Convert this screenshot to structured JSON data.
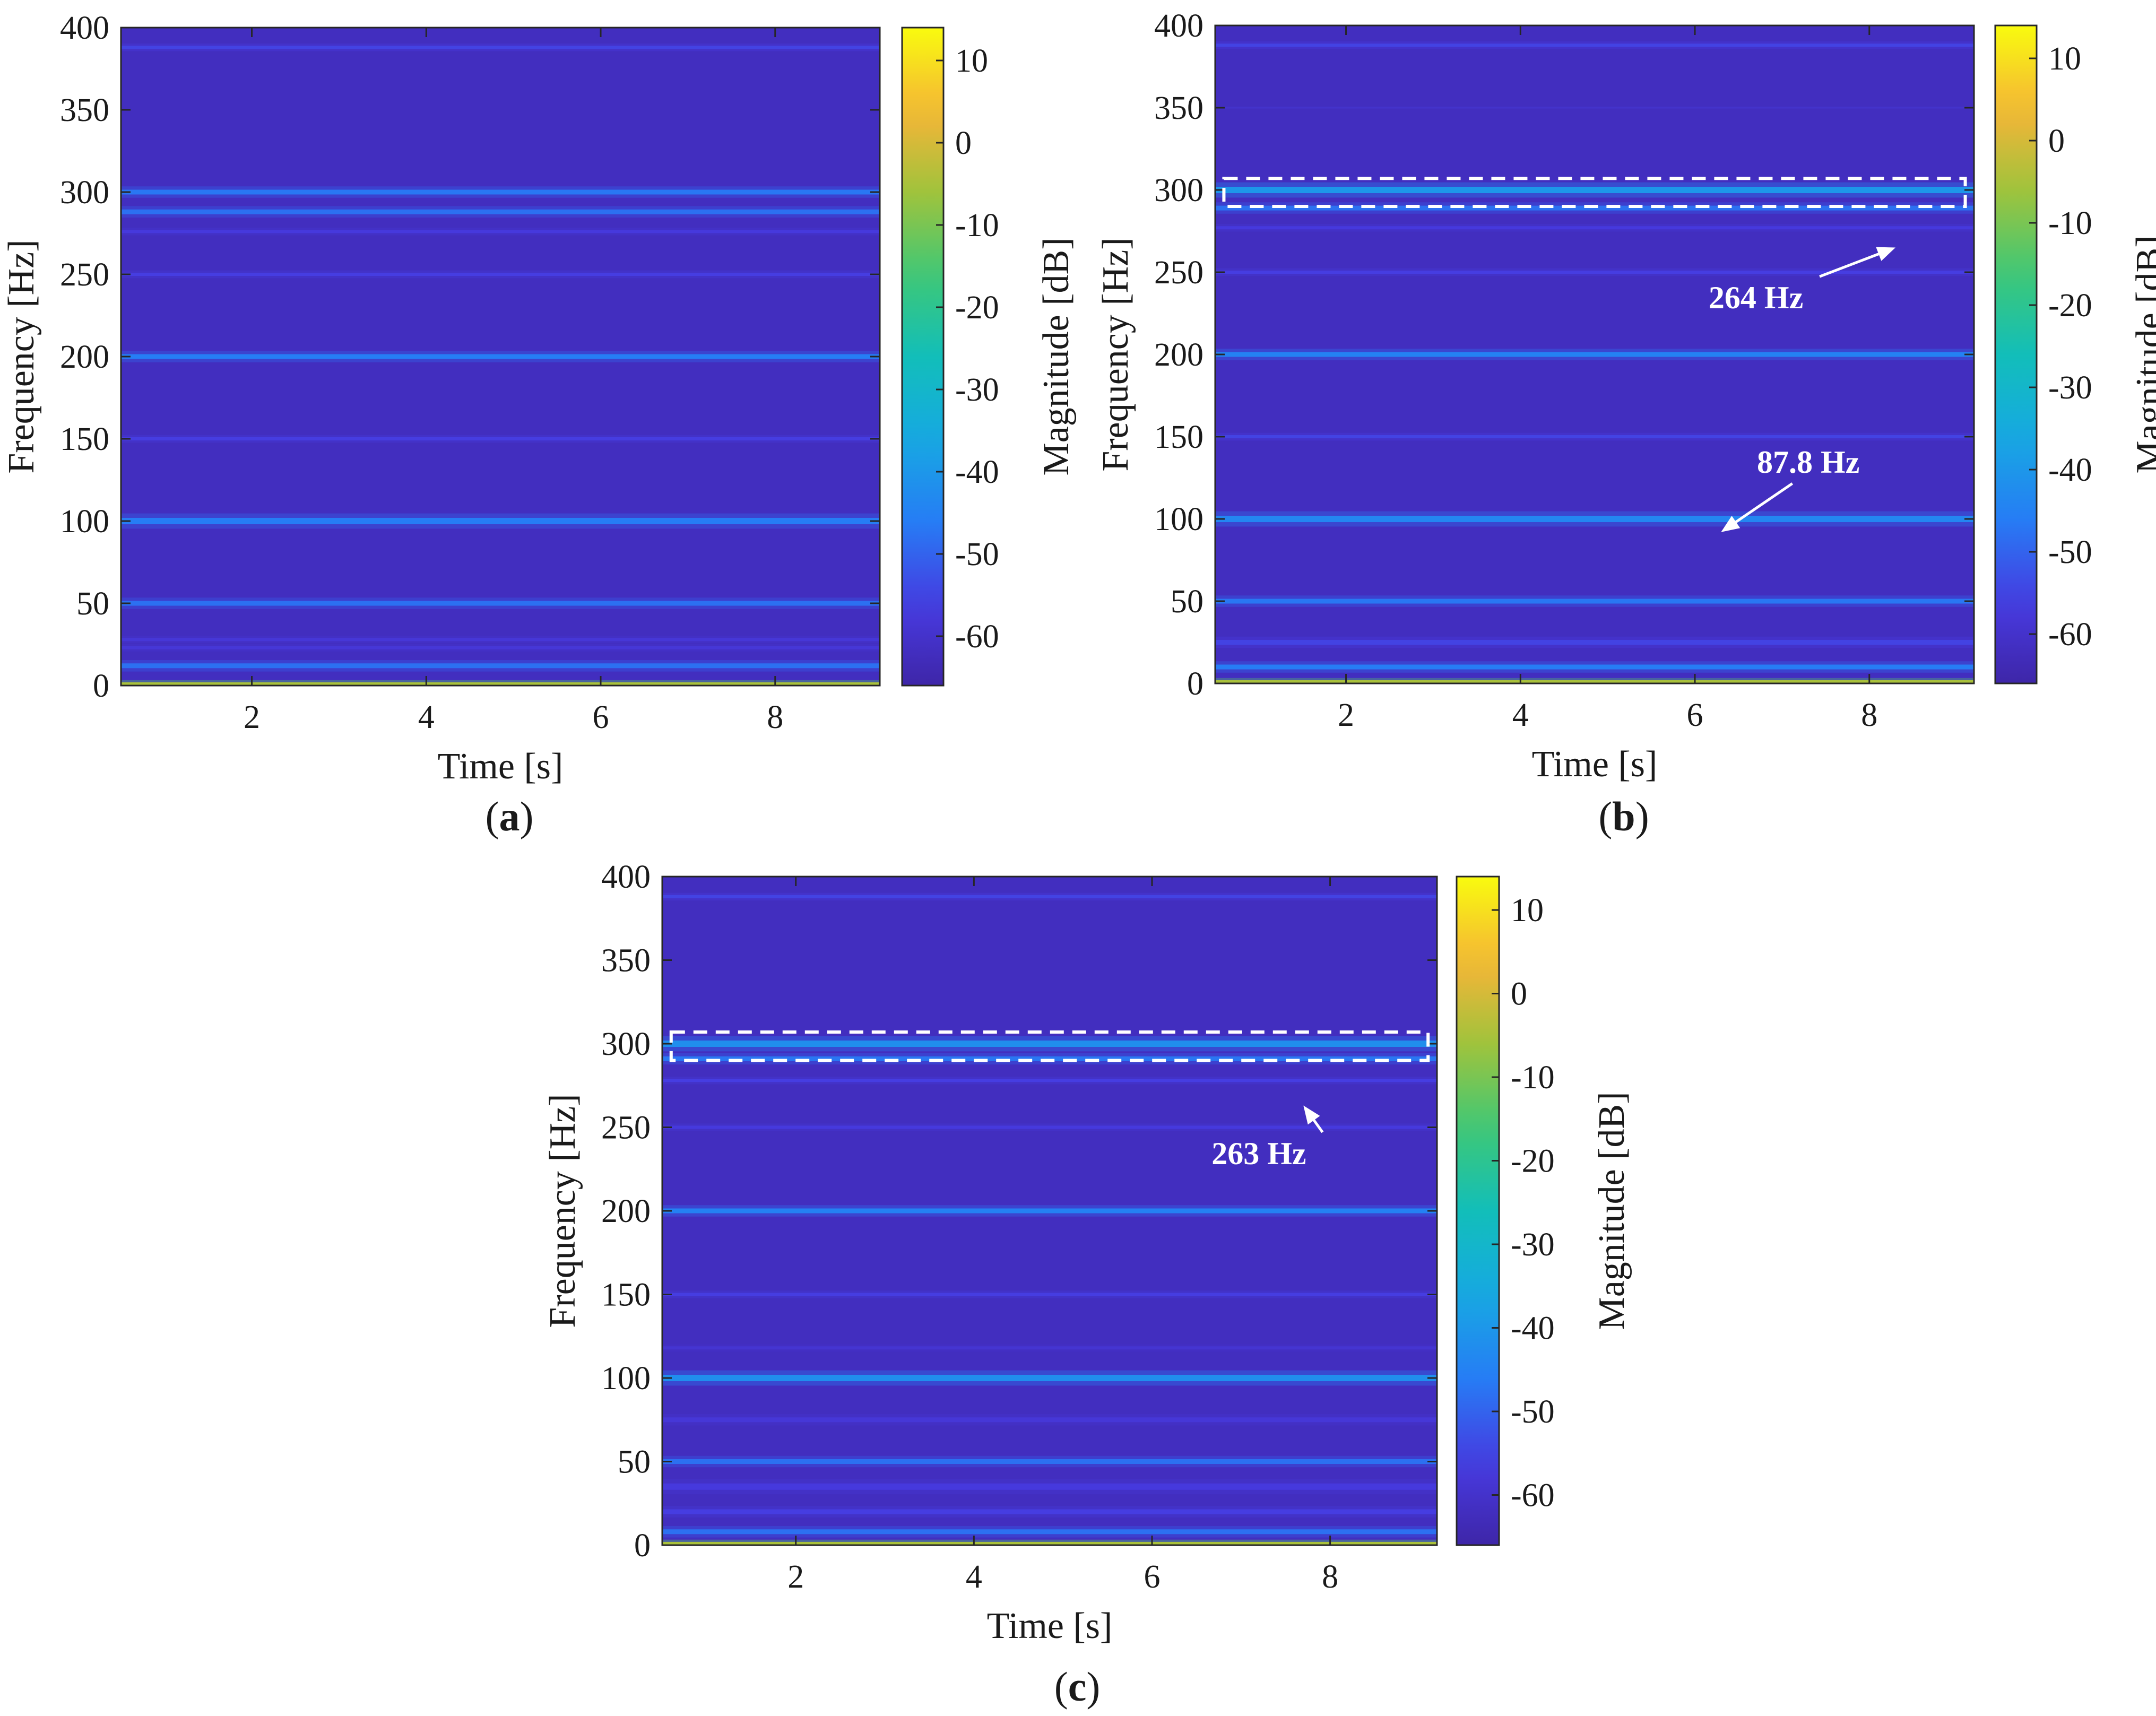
{
  "chart_data": [
    {
      "type": "heatmap",
      "panel_label": "a",
      "xlabel": "Time [s]",
      "ylabel": "Frequency [Hz]",
      "colorbar_label": "Magnitude [dB]",
      "xlim": [
        0.5,
        9.2
      ],
      "ylim": [
        0,
        400
      ],
      "xticks": [
        2,
        4,
        6,
        8
      ],
      "yticks": [
        0,
        50,
        100,
        150,
        200,
        250,
        300,
        350,
        400
      ],
      "clim": [
        -66,
        14
      ],
      "cticks": [
        10,
        0,
        -10,
        -20,
        -30,
        -40,
        -50,
        -60
      ],
      "background_db": -62,
      "lines": [
        {
          "f": 1,
          "db": -5,
          "w": 2
        },
        {
          "f": 12,
          "db": -48,
          "w": 3
        },
        {
          "f": 23,
          "db": -58,
          "w": 2
        },
        {
          "f": 28,
          "db": -58,
          "w": 2
        },
        {
          "f": 50,
          "db": -48,
          "w": 3
        },
        {
          "f": 100,
          "db": -46,
          "w": 4
        },
        {
          "f": 150,
          "db": -56,
          "w": 2
        },
        {
          "f": 200,
          "db": -46,
          "w": 3
        },
        {
          "f": 250,
          "db": -56,
          "w": 2
        },
        {
          "f": 276,
          "db": -57,
          "w": 2
        },
        {
          "f": 288,
          "db": -48,
          "w": 3
        },
        {
          "f": 300,
          "db": -47,
          "w": 3
        },
        {
          "f": 388,
          "db": -55,
          "w": 2
        }
      ],
      "annotations": []
    },
    {
      "type": "heatmap",
      "panel_label": "b",
      "xlabel": "Time [s]",
      "ylabel": "Frequency [Hz]",
      "colorbar_label": "Magnitude [dB]",
      "xlim": [
        0.5,
        9.2
      ],
      "ylim": [
        0,
        400
      ],
      "xticks": [
        2,
        4,
        6,
        8
      ],
      "yticks": [
        0,
        50,
        100,
        150,
        200,
        250,
        300,
        350,
        400
      ],
      "clim": [
        -66,
        14
      ],
      "cticks": [
        10,
        0,
        -10,
        -20,
        -30,
        -40,
        -50,
        -60
      ],
      "background_db": -62,
      "lines": [
        {
          "f": 1,
          "db": -5,
          "w": 2
        },
        {
          "f": 10,
          "db": -46,
          "w": 3
        },
        {
          "f": 25,
          "db": -55,
          "w": 3
        },
        {
          "f": 50,
          "db": -47,
          "w": 3
        },
        {
          "f": 100,
          "db": -44,
          "w": 4
        },
        {
          "f": 150,
          "db": -55,
          "w": 2
        },
        {
          "f": 200,
          "db": -45,
          "w": 3
        },
        {
          "f": 250,
          "db": -56,
          "w": 2
        },
        {
          "f": 277,
          "db": -57,
          "w": 2
        },
        {
          "f": 289,
          "db": -48,
          "w": 3
        },
        {
          "f": 300,
          "db": -40,
          "w": 4
        },
        {
          "f": 350,
          "db": -60,
          "w": 1
        },
        {
          "f": 388,
          "db": -55,
          "w": 2
        }
      ],
      "highlight_box": {
        "t0": 0.6,
        "t1": 9.1,
        "f0": 290,
        "f1": 307
      },
      "annotations": [
        {
          "text": "264 Hz",
          "tx": 6.7,
          "tf": 228,
          "ax": 8.3,
          "af": 265
        },
        {
          "text": "87.8 Hz",
          "tx": 7.3,
          "tf": 128,
          "ax": 6.3,
          "af": 92
        }
      ]
    },
    {
      "type": "heatmap",
      "panel_label": "c",
      "xlabel": "Time [s]",
      "ylabel": "Frequency [Hz]",
      "colorbar_label": "Magnitude [dB]",
      "xlim": [
        0.5,
        9.2
      ],
      "ylim": [
        0,
        400
      ],
      "xticks": [
        2,
        4,
        6,
        8
      ],
      "yticks": [
        0,
        50,
        100,
        150,
        200,
        250,
        300,
        350,
        400
      ],
      "clim": [
        -66,
        14
      ],
      "cticks": [
        10,
        0,
        -10,
        -20,
        -30,
        -40,
        -50,
        -60
      ],
      "background_db": -62,
      "lines": [
        {
          "f": 1,
          "db": -5,
          "w": 2
        },
        {
          "f": 8,
          "db": -48,
          "w": 3
        },
        {
          "f": 20,
          "db": -56,
          "w": 3
        },
        {
          "f": 35,
          "db": -57,
          "w": 4
        },
        {
          "f": 50,
          "db": -48,
          "w": 3
        },
        {
          "f": 75,
          "db": -58,
          "w": 3
        },
        {
          "f": 100,
          "db": -42,
          "w": 4
        },
        {
          "f": 118,
          "db": -59,
          "w": 2
        },
        {
          "f": 150,
          "db": -56,
          "w": 2
        },
        {
          "f": 200,
          "db": -45,
          "w": 3
        },
        {
          "f": 250,
          "db": -57,
          "w": 2
        },
        {
          "f": 278,
          "db": -56,
          "w": 2
        },
        {
          "f": 291,
          "db": -47,
          "w": 3
        },
        {
          "f": 300,
          "db": -42,
          "w": 4
        },
        {
          "f": 388,
          "db": -55,
          "w": 2
        }
      ],
      "highlight_box": {
        "t0": 0.6,
        "t1": 9.1,
        "f0": 290,
        "f1": 307
      },
      "annotations": [
        {
          "text": "263 Hz",
          "tx": 7.2,
          "tf": 228,
          "ax": 7.7,
          "af": 263
        }
      ]
    }
  ]
}
